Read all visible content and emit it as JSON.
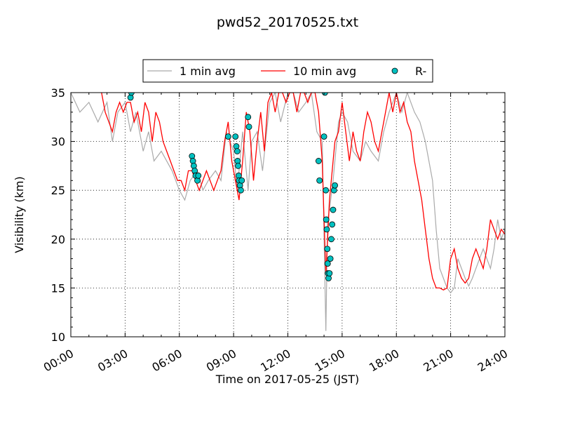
{
  "chart_data": {
    "type": "line",
    "title": "pwd52_20170525.txt",
    "xlabel": "Time on 2017-05-25 (JST)",
    "ylabel": "Visibility (km)",
    "xlim": [
      0,
      24
    ],
    "ylim": [
      10,
      35
    ],
    "x_ticks": [
      "00:00",
      "03:00",
      "06:00",
      "09:00",
      "12:00",
      "15:00",
      "18:00",
      "21:00",
      "24:00"
    ],
    "y_ticks": [
      "10",
      "15",
      "20",
      "25",
      "30",
      "35"
    ],
    "grid": true,
    "legend_position": "top-center",
    "series": [
      {
        "name": "1 min avg",
        "color": "#aaaaaa",
        "style": "line",
        "x": [
          0.0,
          0.5,
          1.0,
          1.5,
          2.0,
          2.3,
          2.6,
          3.0,
          3.3,
          3.6,
          4.0,
          4.3,
          4.6,
          5.0,
          5.3,
          5.6,
          6.0,
          6.3,
          6.6,
          7.0,
          7.3,
          7.6,
          8.0,
          8.3,
          8.6,
          9.0,
          9.2,
          9.5,
          9.8,
          10.0,
          10.3,
          10.6,
          11.0,
          11.3,
          11.6,
          12.0,
          12.3,
          12.6,
          13.0,
          13.3,
          13.6,
          13.9,
          14.1,
          14.2,
          14.3,
          14.5,
          14.8,
          15.0,
          15.3,
          15.6,
          16.0,
          16.3,
          16.6,
          17.0,
          17.3,
          17.6,
          18.0,
          18.3,
          18.6,
          19.0,
          19.3,
          19.6,
          20.0,
          20.2,
          20.4,
          20.6,
          20.8,
          21.0,
          21.2,
          21.4,
          21.6,
          21.8,
          22.0,
          22.2,
          22.4,
          22.6,
          22.8,
          23.0,
          23.2,
          23.4,
          23.6,
          23.8,
          24.0
        ],
        "y": [
          35,
          33,
          34,
          32,
          34,
          30,
          33,
          34,
          31,
          33,
          29,
          31,
          28,
          29,
          28,
          27,
          25,
          24,
          26,
          27,
          25,
          26,
          27,
          26,
          31,
          29,
          25,
          31,
          25,
          30,
          31,
          27,
          34,
          35,
          32,
          35,
          35,
          33,
          34,
          35,
          31,
          30,
          10.6,
          22,
          23,
          26,
          32,
          33,
          32,
          29,
          28,
          30,
          29,
          28,
          31,
          33,
          35,
          33,
          35,
          33,
          32,
          30,
          26,
          21,
          17,
          16,
          15,
          14.5,
          15,
          18,
          17,
          16,
          15.2,
          16,
          17,
          18,
          19,
          18,
          17,
          19,
          22,
          20,
          21
        ]
      },
      {
        "name": "10 min avg",
        "color": "#ff0000",
        "style": "line",
        "x": [
          1.7,
          1.9,
          2.1,
          2.3,
          2.5,
          2.7,
          2.9,
          3.1,
          3.3,
          3.5,
          3.7,
          3.9,
          4.1,
          4.3,
          4.5,
          4.7,
          4.9,
          5.1,
          5.3,
          5.5,
          5.7,
          5.9,
          6.1,
          6.3,
          6.5,
          6.7,
          6.9,
          7.1,
          7.3,
          7.5,
          7.7,
          7.9,
          8.1,
          8.3,
          8.5,
          8.7,
          8.9,
          9.1,
          9.3,
          9.5,
          9.7,
          9.9,
          10.1,
          10.3,
          10.5,
          10.7,
          10.9,
          11.1,
          11.3,
          11.5,
          11.7,
          11.9,
          12.1,
          12.3,
          12.5,
          12.7,
          12.9,
          13.1,
          13.3,
          13.5,
          13.7,
          13.9,
          14.0,
          14.1,
          14.2,
          14.3,
          14.4,
          14.5,
          14.6,
          14.8,
          15.0,
          15.2,
          15.4,
          15.6,
          15.8,
          16.0,
          16.2,
          16.4,
          16.6,
          16.8,
          17.0,
          17.2,
          17.4,
          17.6,
          17.8,
          18.0,
          18.2,
          18.4,
          18.6,
          18.8,
          19.0,
          19.2,
          19.4,
          19.6,
          19.8,
          20.0,
          20.2,
          20.4,
          20.6,
          20.8,
          21.0,
          21.2,
          21.4,
          21.6,
          21.8,
          22.0,
          22.2,
          22.4,
          22.6,
          22.8,
          23.0,
          23.2,
          23.4,
          23.6,
          23.8,
          24.0
        ],
        "y": [
          35,
          33,
          32,
          31,
          33,
          34,
          33,
          34,
          34,
          32,
          33,
          31,
          34,
          33,
          30,
          33,
          32,
          30,
          29,
          28,
          27,
          26,
          26,
          25,
          27,
          27,
          26,
          25,
          26,
          27,
          26,
          25,
          26,
          27,
          30,
          32,
          28,
          26,
          24,
          28,
          33,
          31,
          26,
          30,
          33,
          29,
          34,
          35,
          33,
          35,
          35,
          34,
          35,
          35,
          33,
          35,
          35,
          34,
          35,
          35,
          33,
          28,
          22,
          16.5,
          20,
          24,
          26,
          28,
          30,
          31,
          34,
          31,
          28,
          31,
          29,
          28,
          31,
          33,
          32,
          30,
          29,
          31,
          33,
          35,
          33,
          35,
          33,
          34,
          32,
          31,
          28,
          26,
          24,
          21,
          18,
          16,
          15,
          15,
          14.8,
          15,
          18,
          19,
          17,
          16,
          15.5,
          16,
          18,
          19,
          18,
          17,
          19,
          22,
          21,
          20,
          21,
          20.5
        ]
      },
      {
        "name": "R-",
        "color": "#00c0c0",
        "style": "markers",
        "x": [
          3.3,
          3.35,
          6.7,
          6.75,
          6.8,
          6.85,
          6.9,
          7.0,
          7.05,
          8.7,
          9.1,
          9.15,
          9.2,
          9.22,
          9.25,
          9.28,
          9.3,
          9.35,
          9.4,
          9.45,
          9.8,
          9.85,
          13.7,
          13.75,
          14.0,
          14.05,
          14.1,
          14.12,
          14.15,
          14.18,
          14.2,
          14.22,
          14.25,
          14.3,
          14.35,
          14.4,
          14.45,
          14.5,
          14.55,
          14.6
        ],
        "y": [
          34.5,
          35,
          28.5,
          28,
          27.5,
          27,
          26.5,
          26,
          26.5,
          30.5,
          30.5,
          29.5,
          29,
          28,
          27.5,
          26.5,
          26,
          25.5,
          25,
          26,
          32.5,
          31.5,
          28,
          26,
          30.5,
          35,
          25,
          22,
          21,
          19,
          17.5,
          16.5,
          16,
          16.5,
          18,
          20,
          21.5,
          23,
          25,
          25.5
        ]
      }
    ]
  }
}
